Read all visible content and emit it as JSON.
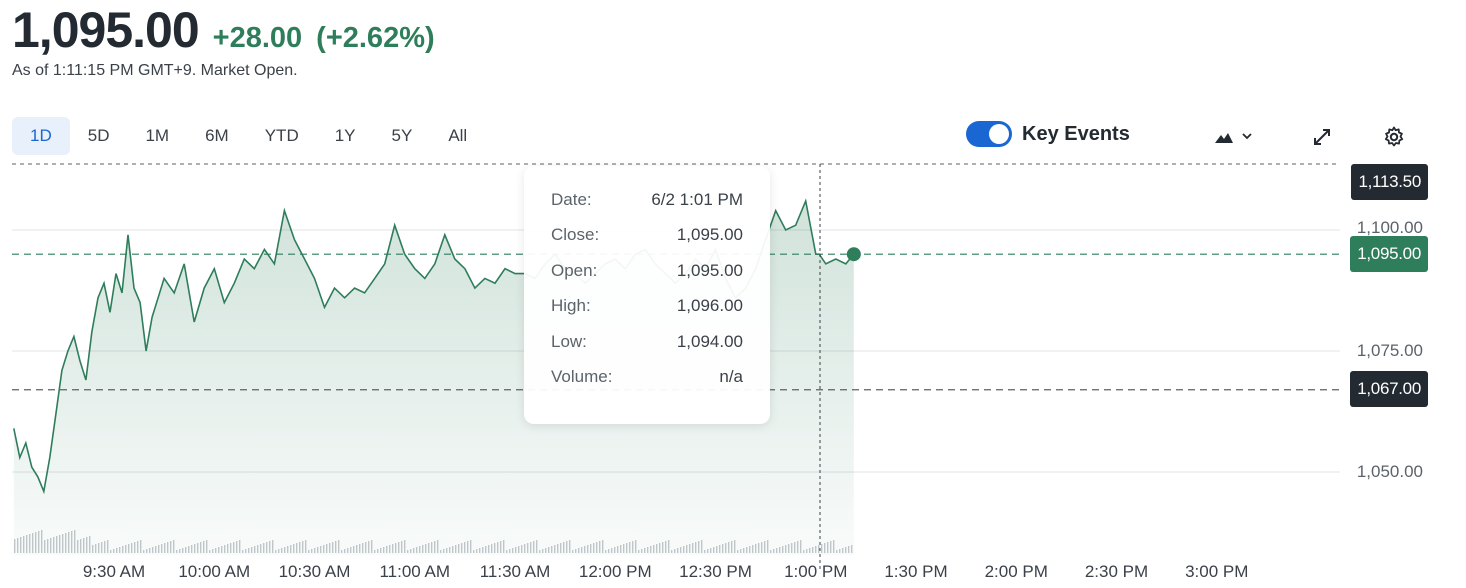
{
  "quote": {
    "price": "1,095.00",
    "change": "+28.00",
    "change_pct": "(+2.62%)",
    "as_of": "As of 1:11:15 PM GMT+9. Market Open."
  },
  "range_tabs": [
    {
      "label": "1D",
      "active": true
    },
    {
      "label": "5D",
      "active": false
    },
    {
      "label": "1M",
      "active": false
    },
    {
      "label": "6M",
      "active": false
    },
    {
      "label": "YTD",
      "active": false
    },
    {
      "label": "1Y",
      "active": false
    },
    {
      "label": "5Y",
      "active": false
    },
    {
      "label": "All",
      "active": false
    }
  ],
  "toolbar": {
    "key_events_label": "Key Events",
    "key_events_on": true,
    "chart_type_icon": "mountain-chart-icon",
    "expand_icon": "expand-icon",
    "settings_icon": "gear-icon"
  },
  "tooltip": {
    "rows": [
      {
        "label": "Date:",
        "value": "6/2 1:01 PM"
      },
      {
        "label": "Close:",
        "value": "1,095.00"
      },
      {
        "label": "Open:",
        "value": "1,095.00"
      },
      {
        "label": "High:",
        "value": "1,096.00"
      },
      {
        "label": "Low:",
        "value": "1,094.00"
      },
      {
        "label": "Volume:",
        "value": "n/a"
      }
    ]
  },
  "price_badges": {
    "top": "1,113.50",
    "current": "1,095.00",
    "prev_close": "1,067.00"
  },
  "colors": {
    "up": "#2e7d5b",
    "accent": "#1a66d2",
    "badge_dark": "#232a31"
  },
  "chart_data": {
    "type": "area",
    "y_ticks": [
      "1,100.00",
      "1,075.00",
      "1,050.00"
    ],
    "x_ticks": [
      "9:30 AM",
      "10:00 AM",
      "10:30 AM",
      "11:00 AM",
      "11:30 AM",
      "12:00 PM",
      "12:30 PM",
      "1:00 PM",
      "1:30 PM",
      "2:00 PM",
      "2:30 PM",
      "3:00 PM"
    ],
    "ylim": [
      1040,
      1115
    ],
    "session_hours": [
      9.0,
      15.5
    ],
    "prev_close": 1067.0,
    "current": 1095.0,
    "series": [
      {
        "times": [
          9.0,
          9.03,
          9.06,
          9.09,
          9.12,
          9.15,
          9.18,
          9.21,
          9.24,
          9.27,
          9.3,
          9.33,
          9.36,
          9.39,
          9.42,
          9.45,
          9.48,
          9.51,
          9.54,
          9.57,
          9.6,
          9.63,
          9.66,
          9.69,
          9.72,
          9.75,
          9.8,
          9.85,
          9.9,
          9.95,
          10.0,
          10.05,
          10.1,
          10.15,
          10.2,
          10.25,
          10.3,
          10.35,
          10.4,
          10.45,
          10.5,
          10.55,
          10.6,
          10.65,
          10.7,
          10.75,
          10.8,
          10.85,
          10.9,
          10.95,
          11.0,
          11.05,
          11.1,
          11.15,
          11.2,
          11.25,
          11.3,
          11.35,
          11.4,
          11.45,
          11.5,
          11.55,
          11.6,
          11.65,
          11.7,
          11.75,
          11.8,
          11.85,
          11.9,
          11.95,
          12.0,
          12.05,
          12.1,
          12.15,
          12.2,
          12.25,
          12.3,
          12.35,
          12.4,
          12.45,
          12.5,
          12.55,
          12.6,
          12.65,
          12.7,
          12.75,
          12.8,
          12.85,
          12.9,
          12.95,
          13.0,
          13.017,
          13.05,
          13.1,
          13.15,
          13.19
        ],
        "values": [
          1059,
          1053,
          1056,
          1051,
          1049,
          1046,
          1053,
          1062,
          1071,
          1075,
          1078,
          1073,
          1069,
          1079,
          1086,
          1089,
          1083,
          1091,
          1087,
          1099,
          1088,
          1085,
          1075,
          1082,
          1086,
          1090,
          1087,
          1093,
          1081,
          1088,
          1092,
          1085,
          1089,
          1094,
          1092,
          1096,
          1093,
          1104,
          1098,
          1094,
          1090,
          1084,
          1088,
          1086,
          1088,
          1087,
          1090,
          1093,
          1101,
          1095,
          1092,
          1090,
          1093,
          1099,
          1094,
          1092,
          1088,
          1090,
          1089,
          1092,
          1091,
          1091,
          1090,
          1093,
          1095,
          1092,
          1091,
          1089,
          1091,
          1093,
          1094,
          1092,
          1095,
          1096,
          1093,
          1091,
          1089,
          1091,
          1094,
          1092,
          1096,
          1090,
          1086,
          1088,
          1092,
          1098,
          1104,
          1100,
          1101,
          1106,
          1095,
          1095,
          1093,
          1094,
          1093,
          1095
        ]
      }
    ],
    "volume_note": ""
  }
}
